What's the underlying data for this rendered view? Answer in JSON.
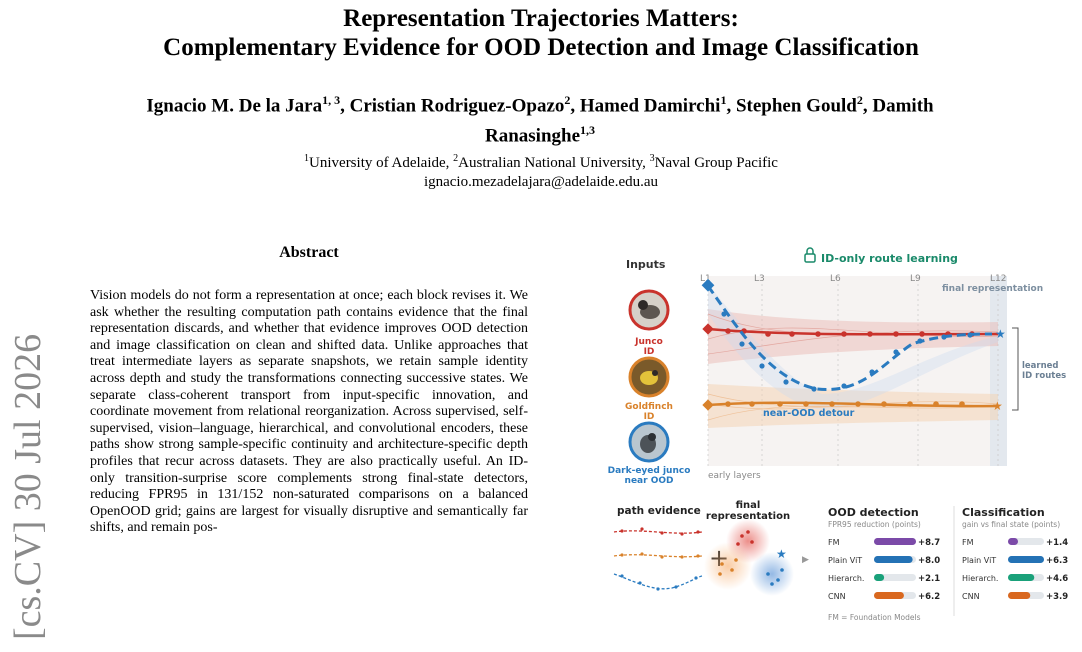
{
  "paper": {
    "title_line1": "Representation Trajectories Matters:",
    "title_line2": "Complementary Evidence for OOD Detection and Image Classification",
    "authors_line1": [
      {
        "name": "Ignacio M. De la Jara",
        "sup": "1, 3",
        "sep": ", "
      },
      {
        "name": "Cristian Rodriguez-Opazo",
        "sup": "2",
        "sep": ", "
      },
      {
        "name": "Hamed Damirchi",
        "sup": "1",
        "sep": ", "
      },
      {
        "name": "Stephen Gould",
        "sup": "2",
        "sep": ", "
      },
      {
        "name": "Damith",
        "sup": "",
        "sep": ""
      }
    ],
    "authors_line2": [
      {
        "name": "Ranasinghe",
        "sup": "1,3",
        "sep": ""
      }
    ],
    "affiliations": [
      {
        "sup": "1",
        "name": "University of Adelaide",
        "sep": ", "
      },
      {
        "sup": "2",
        "name": "Australian National University",
        "sep": ", "
      },
      {
        "sup": "3",
        "name": "Naval Group Pacific",
        "sep": ""
      }
    ],
    "email": "ignacio.mezadelajara@adelaide.edu.au",
    "arxiv_stamp": "[cs.CV]  30 Jul 2026",
    "abstract_heading": "Abstract",
    "abstract_text": "Vision models do not form a representation at once; each block revises it. We ask whether the resulting computation path contains evidence that the final representation discards, and whether that evidence improves OOD detection and image classification on clean and shifted data. Unlike approaches that treat intermediate layers as separate snapshots, we retain sample identity across depth and study the transformations connecting successive states. We separate class-coherent transport from input-specific innovation, and coordinate movement from relational reorganization. Across supervised, self-supervised, vision–language, hierarchical, and convolutional encoders, these paths show strong sample-specific continuity and architecture-specific depth profiles that recur across datasets. They are also practically useful. An ID-only transition-surprise score complements strong final-state detectors, reducing FPR95 in 131/152 non-saturated comparisons on a balanced OpenOOD grid; gains are largest for visually disruptive and semantically far shifts, and remain pos-"
  },
  "figure": {
    "inputs_label": "Inputs",
    "header": "ID-only route learning",
    "layer_ticks": [
      "L1",
      "L3",
      "L6",
      "L9",
      "L12"
    ],
    "final_rep_label": "final representation",
    "early_layers_label": "early layers",
    "learned_routes_label": [
      "learned",
      "ID routes"
    ],
    "near_ood_detour_label": "near-OOD detour",
    "inputs": [
      {
        "name": "Junco",
        "sub": "ID",
        "color": "#c9332c"
      },
      {
        "name": "Goldfinch",
        "sub": "ID",
        "color": "#d9822b"
      },
      {
        "name": "Dark-eyed junco",
        "sub": "near OOD",
        "color": "#2a7bc0"
      }
    ],
    "path_evidence_label": "path evidence",
    "final_representation_label": [
      "final",
      "representation"
    ],
    "ood": {
      "title": "OOD detection",
      "subtitle": "FPR95 reduction (points)",
      "rows": [
        {
          "label": "FM",
          "value": "+8.7",
          "num": 8.7,
          "color": "#7b4aa8"
        },
        {
          "label": "Plain ViT",
          "value": "+8.0",
          "num": 8.0,
          "color": "#2472b5"
        },
        {
          "label": "Hierarch.",
          "value": "+2.1",
          "num": 2.1,
          "color": "#1aa17a"
        },
        {
          "label": "CNN",
          "value": "+6.2",
          "num": 6.2,
          "color": "#d9681f"
        }
      ],
      "note": "FM = Foundation Models"
    },
    "cls": {
      "title": "Classification",
      "subtitle": "gain vs final state (points)",
      "rows": [
        {
          "label": "FM",
          "value": "+1.4",
          "num": 1.4,
          "color": "#7b4aa8"
        },
        {
          "label": "Plain ViT",
          "value": "+6.3",
          "num": 6.3,
          "color": "#2472b5"
        },
        {
          "label": "Hierarch.",
          "value": "+4.6",
          "num": 4.6,
          "color": "#1aa17a"
        },
        {
          "label": "CNN",
          "value": "+3.9",
          "num": 3.9,
          "color": "#d9681f"
        }
      ]
    }
  }
}
